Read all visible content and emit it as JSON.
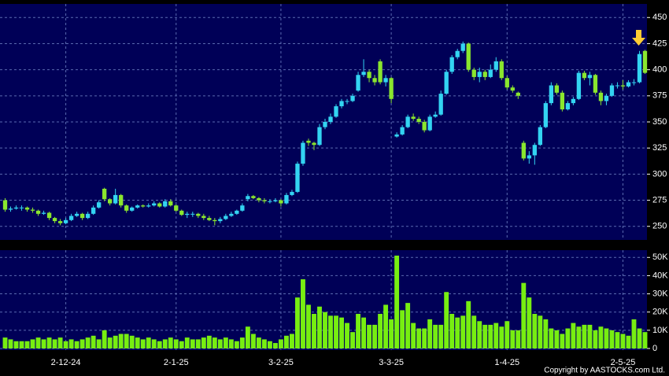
{
  "chart_data": {
    "type": "candlestick",
    "up_color": "#33d4f2",
    "down_color": "#8ae62e",
    "copyright": "Copyright by AASTOCKS.com Ltd.",
    "categories": [
      null,
      null,
      null,
      null,
      null,
      null,
      null,
      null,
      null,
      null,
      null,
      "2-12-24",
      null,
      null,
      null,
      null,
      null,
      null,
      null,
      null,
      null,
      null,
      null,
      null,
      null,
      null,
      null,
      null,
      null,
      null,
      null,
      "2-1-25",
      null,
      null,
      null,
      null,
      null,
      null,
      null,
      null,
      null,
      null,
      null,
      null,
      null,
      null,
      null,
      null,
      null,
      null,
      "3-2-25",
      null,
      null,
      null,
      null,
      null,
      null,
      null,
      null,
      null,
      null,
      null,
      null,
      null,
      null,
      null,
      null,
      null,
      null,
      null,
      "3-3-25",
      null,
      null,
      null,
      null,
      null,
      null,
      null,
      null,
      null,
      null,
      null,
      null,
      null,
      null,
      null,
      null,
      null,
      null,
      null,
      null,
      "1-4-25",
      null,
      null,
      null,
      null,
      null,
      null,
      null,
      null,
      null,
      null,
      null,
      null,
      null,
      null,
      null,
      null,
      null,
      null,
      null,
      null,
      "2-5-25",
      null,
      null,
      null,
      null
    ],
    "open": [
      275,
      266,
      267,
      268,
      268,
      266,
      265,
      262,
      263,
      258,
      255,
      253,
      256,
      260,
      262,
      258,
      262,
      268,
      286,
      276,
      272,
      280,
      270,
      265,
      268,
      270,
      269,
      270,
      272,
      269,
      274,
      270,
      265,
      261,
      262,
      262,
      260,
      258,
      256,
      255,
      257,
      260,
      262,
      265,
      276,
      279,
      277,
      275,
      274,
      274,
      275,
      272,
      280,
      283,
      310,
      332,
      330,
      328,
      345,
      350,
      355,
      365,
      370,
      370,
      380,
      395,
      398,
      392,
      408,
      388,
      392,
      336,
      338,
      345,
      355,
      353,
      350,
      342,
      355,
      357,
      377,
      398,
      412,
      418,
      425,
      400,
      393,
      398,
      393,
      400,
      408,
      392,
      383,
      378,
      330,
      315,
      318,
      328,
      345,
      368,
      385,
      378,
      362,
      368,
      372,
      397,
      392,
      395,
      378,
      370,
      375,
      385,
      385,
      384,
      388,
      388,
      418
    ],
    "high": [
      277,
      269,
      270,
      270,
      269,
      268,
      266,
      265,
      264,
      259,
      257,
      258,
      262,
      264,
      263,
      264,
      270,
      275,
      287,
      277,
      286,
      281,
      271,
      269,
      271,
      271,
      272,
      274,
      273,
      276,
      276,
      271,
      266,
      264,
      264,
      263,
      262,
      260,
      258,
      259,
      262,
      264,
      266,
      272,
      281,
      280,
      278,
      277,
      276,
      277,
      276,
      282,
      285,
      312,
      332,
      334,
      331,
      348,
      353,
      358,
      367,
      372,
      372,
      377,
      398,
      410,
      400,
      395,
      410,
      395,
      393,
      340,
      347,
      357,
      358,
      355,
      352,
      357,
      360,
      380,
      400,
      414,
      420,
      427,
      426,
      402,
      402,
      400,
      405,
      412,
      410,
      394,
      385,
      379,
      332,
      322,
      330,
      347,
      370,
      388,
      387,
      380,
      370,
      374,
      399,
      399,
      398,
      396,
      380,
      377,
      387,
      388,
      390,
      390,
      391,
      418,
      419
    ],
    "low": [
      264,
      264,
      266,
      265,
      264,
      263,
      260,
      261,
      256,
      253,
      251,
      252,
      255,
      259,
      256,
      257,
      261,
      267,
      274,
      270,
      271,
      268,
      263,
      264,
      267,
      268,
      268,
      269,
      268,
      268,
      269,
      264,
      260,
      258,
      259,
      258,
      256,
      255,
      251,
      253,
      256,
      259,
      261,
      264,
      274,
      276,
      273,
      272,
      272,
      273,
      269,
      271,
      279,
      282,
      308,
      327,
      323,
      327,
      343,
      348,
      354,
      363,
      367,
      369,
      379,
      393,
      388,
      385,
      386,
      384,
      368,
      335,
      337,
      344,
      351,
      348,
      340,
      341,
      354,
      356,
      376,
      396,
      410,
      416,
      398,
      390,
      388,
      390,
      392,
      398,
      390,
      381,
      378,
      372,
      313,
      310,
      309,
      327,
      344,
      366,
      376,
      360,
      361,
      366,
      371,
      390,
      385,
      376,
      366,
      366,
      374,
      382,
      381,
      383,
      385,
      387,
      396
    ],
    "close": [
      266,
      267,
      268,
      268,
      266,
      265,
      262,
      263,
      258,
      255,
      253,
      256,
      260,
      262,
      258,
      262,
      268,
      273,
      276,
      272,
      280,
      270,
      265,
      268,
      270,
      269,
      270,
      272,
      269,
      274,
      270,
      265,
      261,
      262,
      262,
      260,
      258,
      256,
      255,
      257,
      260,
      262,
      265,
      270,
      279,
      277,
      275,
      274,
      274,
      275,
      272,
      280,
      283,
      310,
      330,
      330,
      328,
      345,
      350,
      355,
      365,
      370,
      370,
      375,
      395,
      398,
      392,
      388,
      388,
      392,
      372,
      338,
      345,
      355,
      353,
      350,
      342,
      355,
      357,
      377,
      398,
      412,
      418,
      425,
      400,
      393,
      398,
      393,
      400,
      408,
      392,
      383,
      380,
      375,
      315,
      318,
      328,
      345,
      368,
      385,
      378,
      362,
      368,
      372,
      397,
      392,
      395,
      378,
      370,
      375,
      385,
      385,
      384,
      388,
      388,
      415,
      397
    ],
    "ylim": [
      237,
      463
    ],
    "yticks": [
      250,
      275,
      300,
      325,
      350,
      375,
      400,
      425,
      450
    ],
    "volume": {
      "type": "bar",
      "color": "#77ee11",
      "values": [
        6000,
        5000,
        4000,
        4000,
        4000,
        5000,
        6000,
        5000,
        6000,
        5000,
        6000,
        4000,
        5000,
        4000,
        5000,
        6000,
        7000,
        5000,
        10000,
        6000,
        7000,
        8000,
        8000,
        7000,
        6000,
        5000,
        6000,
        5000,
        4000,
        5000,
        6000,
        5000,
        4000,
        6000,
        5000,
        5000,
        6000,
        7000,
        6000,
        5000,
        6000,
        5000,
        4000,
        6000,
        12000,
        8000,
        6000,
        5000,
        4000,
        3000,
        5000,
        7000,
        8000,
        28000,
        38000,
        24000,
        19000,
        23000,
        20000,
        18000,
        18000,
        17000,
        14000,
        9000,
        19000,
        17000,
        13000,
        13000,
        19000,
        24000,
        16000,
        51000,
        21000,
        25000,
        14000,
        11000,
        11000,
        16000,
        13000,
        13000,
        31000,
        19000,
        17000,
        18000,
        26000,
        18000,
        15000,
        13000,
        13000,
        14000,
        12000,
        15000,
        10000,
        10000,
        36000,
        28000,
        19000,
        18000,
        16000,
        11000,
        10000,
        8000,
        11000,
        14000,
        12000,
        13000,
        13000,
        10000,
        12000,
        11000,
        10000,
        9000,
        8000,
        7000,
        16000,
        11000,
        9000
      ],
      "ylim": [
        0,
        54000
      ],
      "yticks": [
        0,
        {
          "value": 10000,
          "label": "10K"
        },
        {
          "value": 20000,
          "label": "20K"
        },
        {
          "value": 30000,
          "label": "30K"
        },
        {
          "value": 40000,
          "label": "40K"
        },
        {
          "value": 50000,
          "label": "50K"
        }
      ]
    }
  }
}
